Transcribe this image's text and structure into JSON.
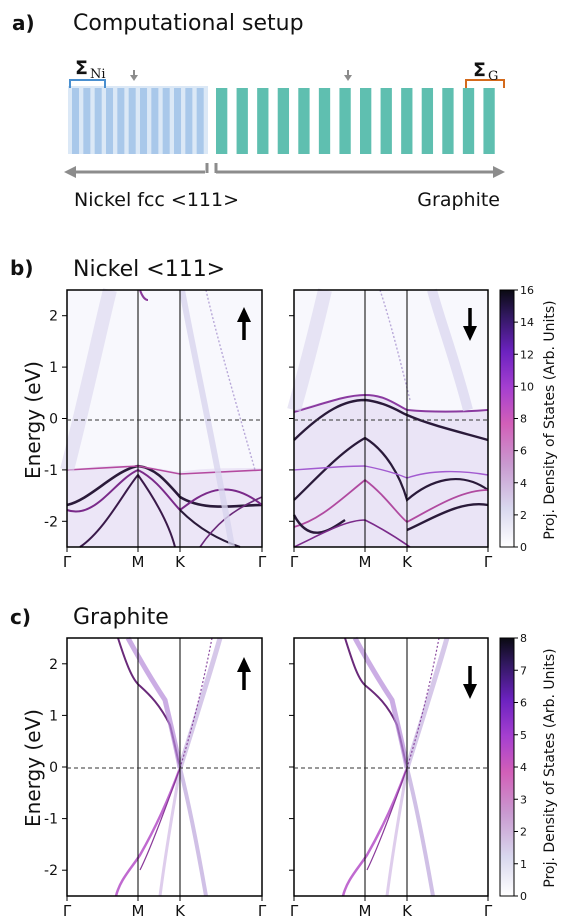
{
  "panel_a": {
    "tag": "a)",
    "title": "Computational setup",
    "sigma_ni": {
      "symbol": "Σ",
      "sub": "Ni"
    },
    "sigma_g": {
      "symbol": "Σ",
      "sub": "G"
    },
    "left_label": "Nickel fcc <111>",
    "right_label": "Graphite",
    "nickel_layers": 12,
    "graphite_layers": 14,
    "colors": {
      "nickel": "#a9c8ea",
      "graphite": "#5fbfb0",
      "sigma_ni_bracket": "#4a8fcf",
      "sigma_g_bracket": "#d46a1c",
      "arrow": "#8c8c8c"
    }
  },
  "panel_b": {
    "tag": "b)",
    "title": "Nickel <111>",
    "ylabel": "Energy (eV)",
    "colorbar_label": "Proj. Density of States (Arb. Units)",
    "colorbar_ticks": [
      "0",
      "2",
      "4",
      "6",
      "8",
      "10",
      "12",
      "14",
      "16"
    ],
    "spin_left": "up",
    "spin_right": "down"
  },
  "panel_c": {
    "tag": "c)",
    "title": "Graphite",
    "ylabel": "Energy (eV)",
    "colorbar_label": "Proj. Density of States (Arb. Units)",
    "colorbar_ticks": [
      "0",
      "1",
      "2",
      "3",
      "4",
      "5",
      "6",
      "7",
      "8"
    ],
    "spin_left": "up",
    "spin_right": "down"
  },
  "axes": {
    "yticks": [
      "2",
      "1",
      "0",
      "-1",
      "-2"
    ],
    "xticks": [
      "Γ",
      "M",
      "K",
      "Γ"
    ]
  },
  "chart_data": [
    {
      "type": "heatmap",
      "title": "Nickel <111>",
      "ylabel": "Energy (eV)",
      "x_ticks": [
        "Γ",
        "M",
        "K",
        "Γ"
      ],
      "ylim": [
        -2.5,
        2.5
      ],
      "yticks": [
        2,
        1,
        0,
        -1,
        -2
      ],
      "colorbar_range": [
        0,
        16
      ],
      "spins": [
        "up",
        "down"
      ]
    },
    {
      "type": "heatmap",
      "title": "Graphite",
      "ylabel": "Energy (eV)",
      "x_ticks": [
        "Γ",
        "M",
        "K",
        "Γ"
      ],
      "ylim": [
        -2.5,
        2.5
      ],
      "yticks": [
        2,
        1,
        0,
        -1,
        -2
      ],
      "colorbar_range": [
        0,
        8
      ],
      "spins": [
        "up",
        "down"
      ]
    }
  ]
}
